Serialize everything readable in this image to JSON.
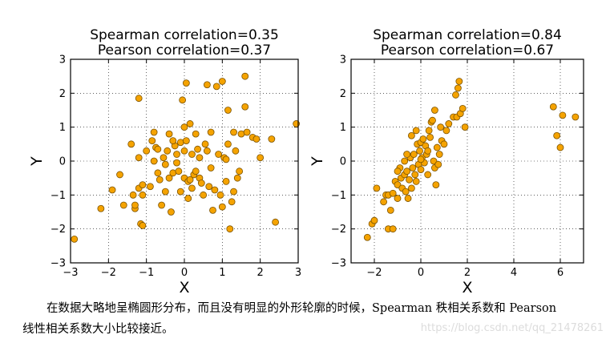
{
  "chart_data": [
    {
      "type": "scatter",
      "title_line1": "Spearman correlation=0.35",
      "title_line2": "Pearson correlation=0.37",
      "xlabel": "X",
      "ylabel": "Y",
      "xlim": [
        -3,
        3
      ],
      "ylim": [
        -3,
        3
      ],
      "xticks": [
        -3,
        -2,
        -1,
        0,
        1,
        2,
        3
      ],
      "yticks": [
        -3,
        -2,
        -1,
        0,
        1,
        2,
        3
      ],
      "grid": true,
      "marker_color": "#f5a300",
      "points": [
        [
          -2.9,
          -2.3
        ],
        [
          -2.2,
          -1.4
        ],
        [
          -1.9,
          -0.85
        ],
        [
          -1.7,
          -0.4
        ],
        [
          -1.6,
          -1.3
        ],
        [
          -1.4,
          0.5
        ],
        [
          -1.3,
          -1.4
        ],
        [
          -1.3,
          -1.3
        ],
        [
          -1.2,
          1.85
        ],
        [
          -1.2,
          0.1
        ],
        [
          -1.2,
          -0.8
        ],
        [
          -1.15,
          -1.85
        ],
        [
          -1.1,
          -1.9
        ],
        [
          -1.1,
          -1.0
        ],
        [
          -1.1,
          -0.7
        ],
        [
          -1.0,
          0.3
        ],
        [
          -0.9,
          -0.75
        ],
        [
          -0.85,
          0.6
        ],
        [
          -0.8,
          0.85
        ],
        [
          -0.75,
          0.4
        ],
        [
          -0.7,
          -0.35
        ],
        [
          -0.7,
          0.35
        ],
        [
          -0.65,
          -0.55
        ],
        [
          -0.6,
          -1.3
        ],
        [
          -0.55,
          0.1
        ],
        [
          -0.5,
          -0.1
        ],
        [
          -0.5,
          -0.9
        ],
        [
          -0.45,
          0.3
        ],
        [
          -0.4,
          -0.5
        ],
        [
          -0.4,
          0.8
        ],
        [
          -0.35,
          -1.5
        ],
        [
          -0.3,
          -0.35
        ],
        [
          -0.25,
          0.45
        ],
        [
          -0.2,
          0.2
        ],
        [
          -0.2,
          -0.05
        ],
        [
          -0.15,
          -0.3
        ],
        [
          -0.1,
          0.55
        ],
        [
          -0.1,
          -0.9
        ],
        [
          -0.05,
          1.8
        ],
        [
          0.0,
          1.0
        ],
        [
          0.0,
          0.3
        ],
        [
          0.0,
          -0.5
        ],
        [
          0.05,
          0.6
        ],
        [
          0.05,
          2.3
        ],
        [
          0.1,
          -0.6
        ],
        [
          0.15,
          -0.55
        ],
        [
          0.15,
          1.1
        ],
        [
          0.2,
          0.2
        ],
        [
          0.2,
          -0.8
        ],
        [
          0.25,
          -0.4
        ],
        [
          0.3,
          0.8
        ],
        [
          0.3,
          -0.3
        ],
        [
          0.35,
          0.35
        ],
        [
          0.4,
          -0.5
        ],
        [
          0.45,
          -0.65
        ],
        [
          0.5,
          -1.0
        ],
        [
          0.55,
          0.5
        ],
        [
          0.6,
          0.3
        ],
        [
          0.6,
          2.25
        ],
        [
          0.65,
          -0.75
        ],
        [
          0.7,
          0.85
        ],
        [
          0.75,
          -1.45
        ],
        [
          0.8,
          -0.85
        ],
        [
          0.85,
          2.2
        ],
        [
          0.9,
          0.2
        ],
        [
          0.95,
          -1.0
        ],
        [
          1.0,
          2.35
        ],
        [
          1.0,
          -1.35
        ],
        [
          1.05,
          0.1
        ],
        [
          1.1,
          0.05
        ],
        [
          1.1,
          -0.6
        ],
        [
          1.15,
          0.5
        ],
        [
          1.15,
          1.5
        ],
        [
          1.2,
          -2.0
        ],
        [
          1.25,
          -1.2
        ],
        [
          1.3,
          0.85
        ],
        [
          1.35,
          0.3
        ],
        [
          1.4,
          -0.5
        ],
        [
          1.45,
          -0.3
        ],
        [
          1.5,
          0.8
        ],
        [
          1.6,
          1.6
        ],
        [
          1.6,
          2.5
        ],
        [
          1.65,
          0.85
        ],
        [
          1.8,
          0.7
        ],
        [
          1.9,
          0.65
        ],
        [
          2.0,
          0.1
        ],
        [
          2.3,
          0.65
        ],
        [
          2.4,
          -1.8
        ],
        [
          2.95,
          1.1
        ],
        [
          -1.35,
          -1.0
        ],
        [
          0.7,
          -0.2
        ],
        [
          0.4,
          0.1
        ],
        [
          -0.8,
          0.0
        ],
        [
          0.1,
          -1.1
        ],
        [
          -0.3,
          0.6
        ],
        [
          1.3,
          -0.9
        ]
      ]
    },
    {
      "type": "scatter",
      "title_line1": "Spearman correlation=0.84",
      "title_line2": "Pearson correlation=0.67",
      "xlabel": "X",
      "ylabel": "Y",
      "xlim": [
        -3,
        7
      ],
      "ylim": [
        -3,
        3
      ],
      "xticks": [
        -2,
        0,
        2,
        4,
        6
      ],
      "yticks": [
        -3,
        -2,
        -1,
        0,
        1,
        2,
        3
      ],
      "grid": true,
      "marker_color": "#f5a300",
      "points": [
        [
          -2.3,
          -2.25
        ],
        [
          -2.1,
          -1.85
        ],
        [
          -2.0,
          -1.75
        ],
        [
          -1.9,
          -0.8
        ],
        [
          -1.6,
          -1.2
        ],
        [
          -1.5,
          -1.0
        ],
        [
          -1.4,
          -1.0
        ],
        [
          -1.4,
          -2.0
        ],
        [
          -1.3,
          -1.45
        ],
        [
          -1.2,
          -0.95
        ],
        [
          -1.2,
          -2.0
        ],
        [
          -1.1,
          -0.6
        ],
        [
          -1.0,
          -1.1
        ],
        [
          -1.0,
          -0.7
        ],
        [
          -0.9,
          -0.2
        ],
        [
          -0.85,
          -0.5
        ],
        [
          -0.8,
          -0.8
        ],
        [
          -0.7,
          0.0
        ],
        [
          -0.7,
          -0.4
        ],
        [
          -0.65,
          -0.9
        ],
        [
          -0.6,
          -0.3
        ],
        [
          -0.55,
          -1.1
        ],
        [
          -0.5,
          -0.55
        ],
        [
          -0.45,
          0.1
        ],
        [
          -0.4,
          -0.8
        ],
        [
          -0.4,
          0.75
        ],
        [
          -0.35,
          -0.2
        ],
        [
          -0.3,
          0.2
        ],
        [
          -0.25,
          -0.4
        ],
        [
          -0.2,
          -0.6
        ],
        [
          -0.15,
          0.5
        ],
        [
          -0.1,
          -0.1
        ],
        [
          -0.05,
          0.3
        ],
        [
          0.0,
          0.55
        ],
        [
          0.0,
          -0.25
        ],
        [
          0.05,
          0.1
        ],
        [
          0.1,
          0.65
        ],
        [
          0.15,
          -0.05
        ],
        [
          0.2,
          0.45
        ],
        [
          0.25,
          0.2
        ],
        [
          0.3,
          0.3
        ],
        [
          0.35,
          0.9
        ],
        [
          0.4,
          0.7
        ],
        [
          0.45,
          1.15
        ],
        [
          0.5,
          1.2
        ],
        [
          0.55,
          0.0
        ],
        [
          0.6,
          -0.2
        ],
        [
          0.6,
          1.5
        ],
        [
          0.65,
          -0.7
        ],
        [
          0.7,
          0.4
        ],
        [
          0.75,
          -0.1
        ],
        [
          0.8,
          0.2
        ],
        [
          0.85,
          1.0
        ],
        [
          0.9,
          0.6
        ],
        [
          1.0,
          0.5
        ],
        [
          1.1,
          0.9
        ],
        [
          1.2,
          1.1
        ],
        [
          1.4,
          1.3
        ],
        [
          1.5,
          1.95
        ],
        [
          1.55,
          1.3
        ],
        [
          1.6,
          2.15
        ],
        [
          1.65,
          2.35
        ],
        [
          1.7,
          1.4
        ],
        [
          1.8,
          1.55
        ],
        [
          1.9,
          1.0
        ],
        [
          -0.6,
          0.2
        ],
        [
          -0.2,
          0.9
        ],
        [
          0.3,
          -0.4
        ],
        [
          -1.0,
          -0.3
        ],
        [
          0.0,
          0.05
        ],
        [
          5.7,
          1.6
        ],
        [
          5.85,
          0.75
        ],
        [
          6.0,
          0.4
        ],
        [
          6.1,
          1.35
        ],
        [
          6.65,
          1.3
        ]
      ]
    }
  ],
  "caption": {
    "line1": "在数据大略地呈椭圆形分布，而且没有明显的外形轮廓的时候，Spearman 秩相关系数和 Pearson",
    "line2": "线性相关系数大小比较接近。"
  },
  "watermark": "https://blog.csdn.net/qq_21478261"
}
